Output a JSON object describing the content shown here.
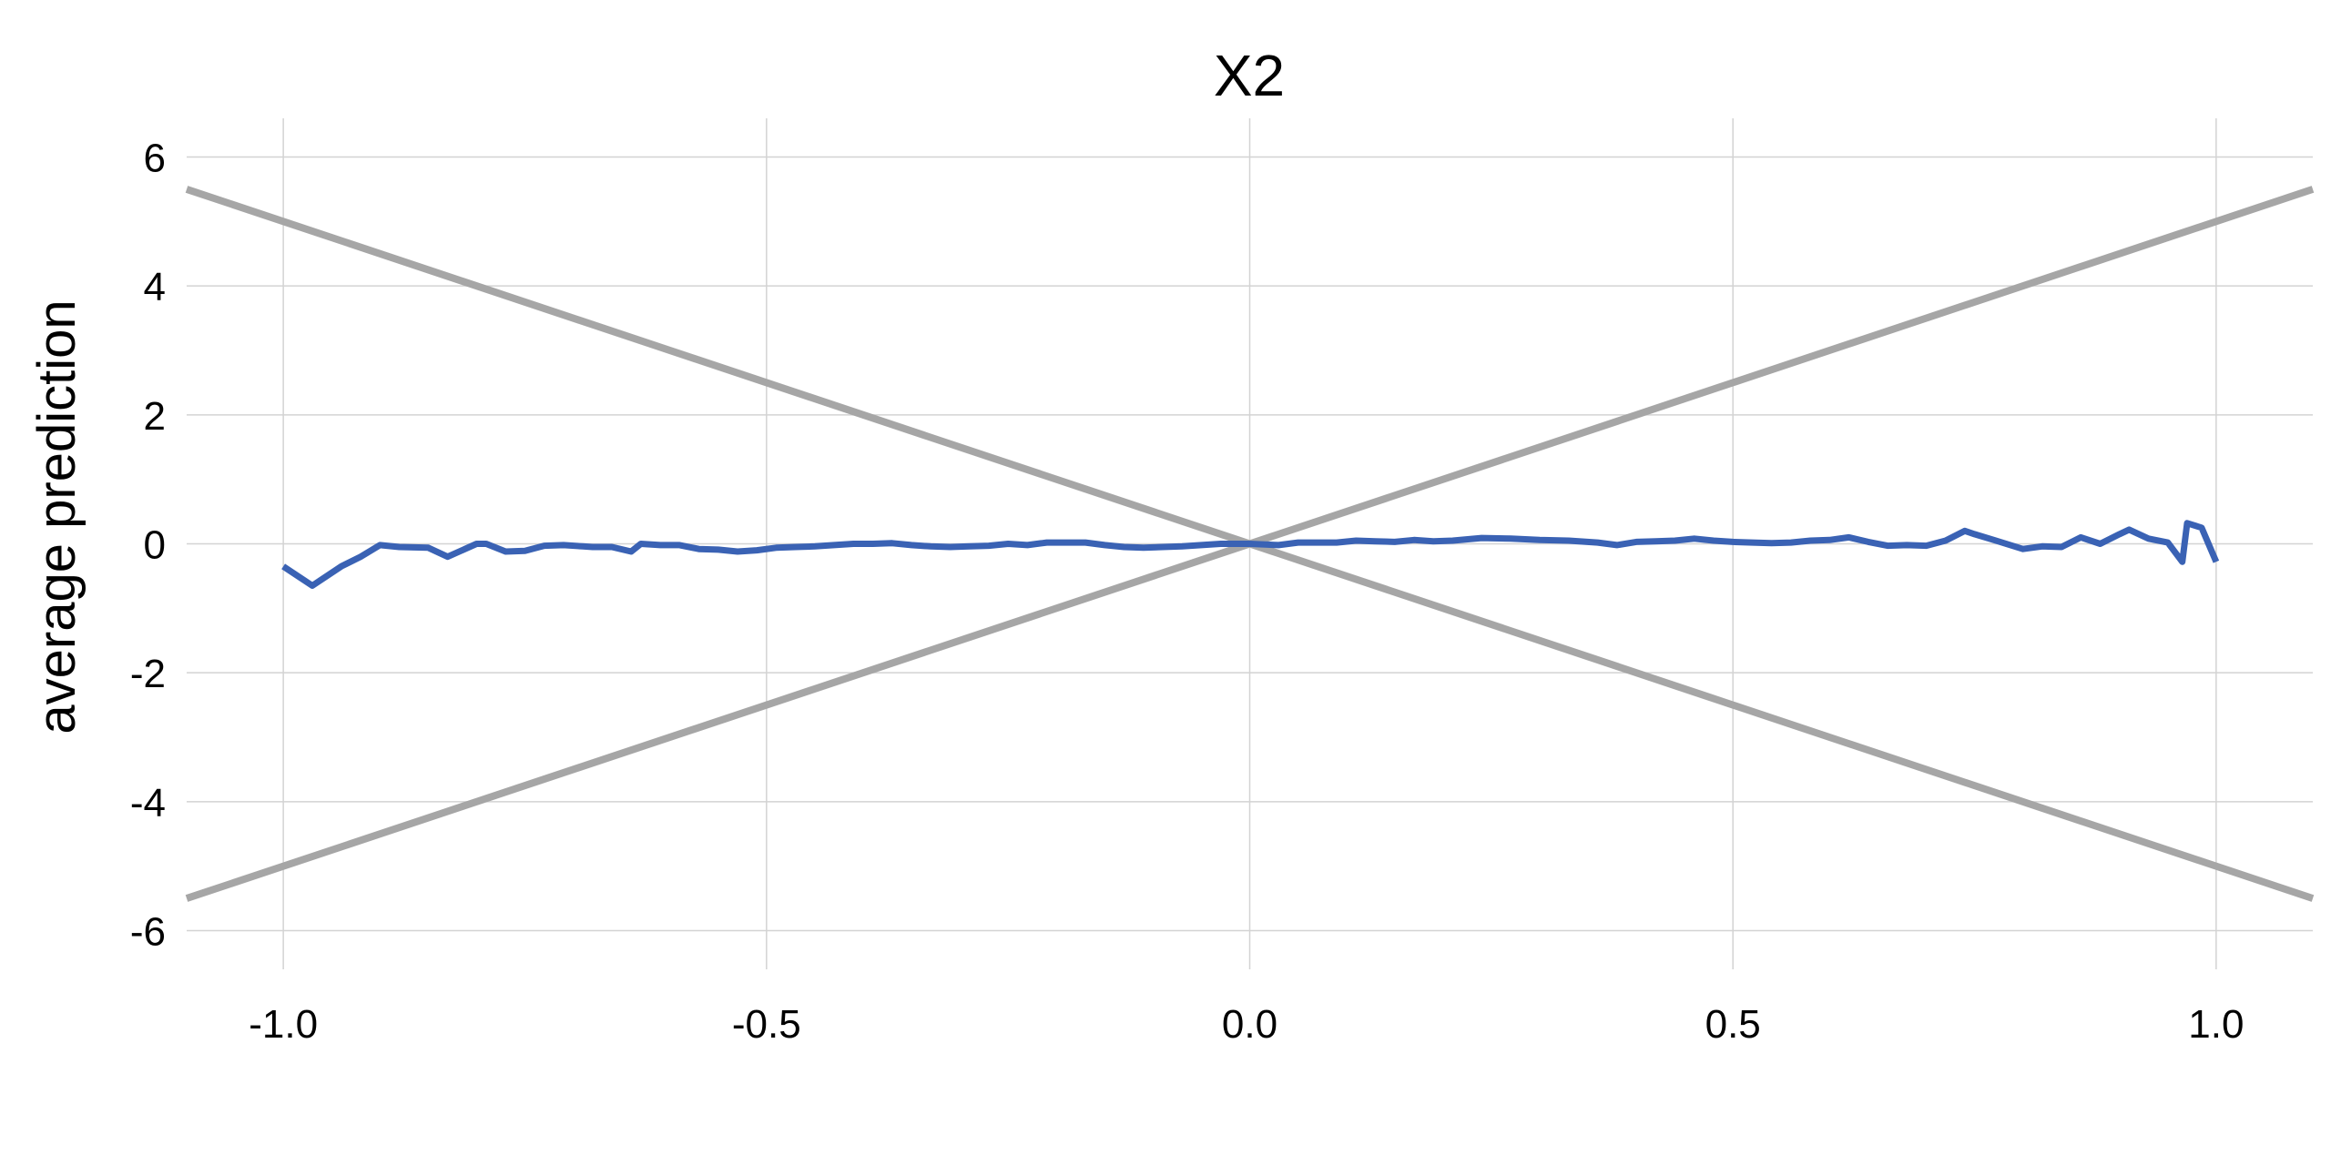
{
  "chart_data": {
    "type": "line",
    "title": "X2",
    "xlabel": "",
    "ylabel": "average prediction",
    "xlim": [
      -1.1,
      1.1
    ],
    "ylim": [
      -6.6,
      6.6
    ],
    "xticks": [
      -1.0,
      -0.5,
      0.0,
      0.5,
      1.0
    ],
    "xtick_labels": [
      "-1.0",
      "-0.5",
      "0.0",
      "0.5",
      "1.0"
    ],
    "yticks": [
      6,
      4,
      2,
      0,
      -2,
      -4,
      -6
    ],
    "ytick_labels": [
      "6",
      "4",
      "2",
      "0",
      "-2",
      "-4",
      "-6"
    ],
    "grid": true,
    "legend": "none",
    "colors": {
      "series": "#3a62b4",
      "reference": "#a6a6a6",
      "grid": "#d3d3d3"
    },
    "series": [
      {
        "x": [
          -1.0,
          -0.97,
          -0.94,
          -0.92,
          -0.9,
          -0.88,
          -0.85,
          -0.83,
          -0.8,
          -0.79,
          -0.77,
          -0.75,
          -0.73,
          -0.71,
          -0.69,
          -0.68,
          -0.66,
          -0.64,
          -0.63,
          -0.61,
          -0.59,
          -0.57,
          -0.55,
          -0.53,
          -0.51,
          -0.49,
          -0.47,
          -0.45,
          -0.43,
          -0.41,
          -0.39,
          -0.37,
          -0.35,
          -0.33,
          -0.31,
          -0.29,
          -0.27,
          -0.25,
          -0.23,
          -0.21,
          -0.19,
          -0.17,
          -0.15,
          -0.13,
          -0.11,
          -0.09,
          -0.07,
          -0.05,
          -0.03,
          0.0,
          0.03,
          0.05,
          0.07,
          0.09,
          0.11,
          0.13,
          0.15,
          0.17,
          0.19,
          0.21,
          0.24,
          0.27,
          0.3,
          0.33,
          0.36,
          0.38,
          0.4,
          0.42,
          0.44,
          0.46,
          0.48,
          0.5,
          0.52,
          0.54,
          0.56,
          0.58,
          0.6,
          0.62,
          0.64,
          0.66,
          0.68,
          0.7,
          0.72,
          0.74,
          0.75,
          0.77,
          0.8,
          0.82,
          0.84,
          0.86,
          0.88,
          0.9,
          0.91,
          0.93,
          0.95,
          0.965,
          0.97,
          0.985,
          1.0
        ],
        "y": [
          -0.35,
          -0.65,
          -0.35,
          -0.2,
          -0.02,
          -0.05,
          -0.06,
          -0.2,
          0.0,
          0.0,
          -0.12,
          -0.11,
          -0.03,
          -0.02,
          -0.04,
          -0.05,
          -0.05,
          -0.12,
          0.0,
          -0.02,
          -0.02,
          -0.08,
          -0.09,
          -0.12,
          -0.1,
          -0.06,
          -0.05,
          -0.04,
          -0.02,
          0.0,
          0.0,
          0.01,
          -0.02,
          -0.04,
          -0.05,
          -0.04,
          -0.03,
          0.0,
          -0.02,
          0.02,
          0.02,
          0.02,
          -0.02,
          -0.05,
          -0.06,
          -0.05,
          -0.04,
          -0.02,
          0.0,
          0.0,
          -0.02,
          0.02,
          0.02,
          0.02,
          0.05,
          0.04,
          0.03,
          0.06,
          0.04,
          0.05,
          0.09,
          0.08,
          0.06,
          0.05,
          0.02,
          -0.02,
          0.03,
          0.04,
          0.05,
          0.08,
          0.05,
          0.03,
          0.02,
          0.01,
          0.02,
          0.05,
          0.06,
          0.1,
          0.03,
          -0.03,
          -0.02,
          -0.03,
          0.05,
          0.2,
          0.15,
          0.06,
          -0.08,
          -0.04,
          -0.05,
          0.1,
          0.0,
          0.15,
          0.22,
          0.08,
          0.02,
          -0.28,
          0.32,
          0.25,
          -0.28
        ]
      }
    ],
    "reference_lines": [
      {
        "x": [
          -1.1,
          1.1
        ],
        "y": [
          -5.5,
          5.5
        ]
      },
      {
        "x": [
          -1.1,
          1.1
        ],
        "y": [
          5.5,
          -5.5
        ]
      }
    ]
  }
}
